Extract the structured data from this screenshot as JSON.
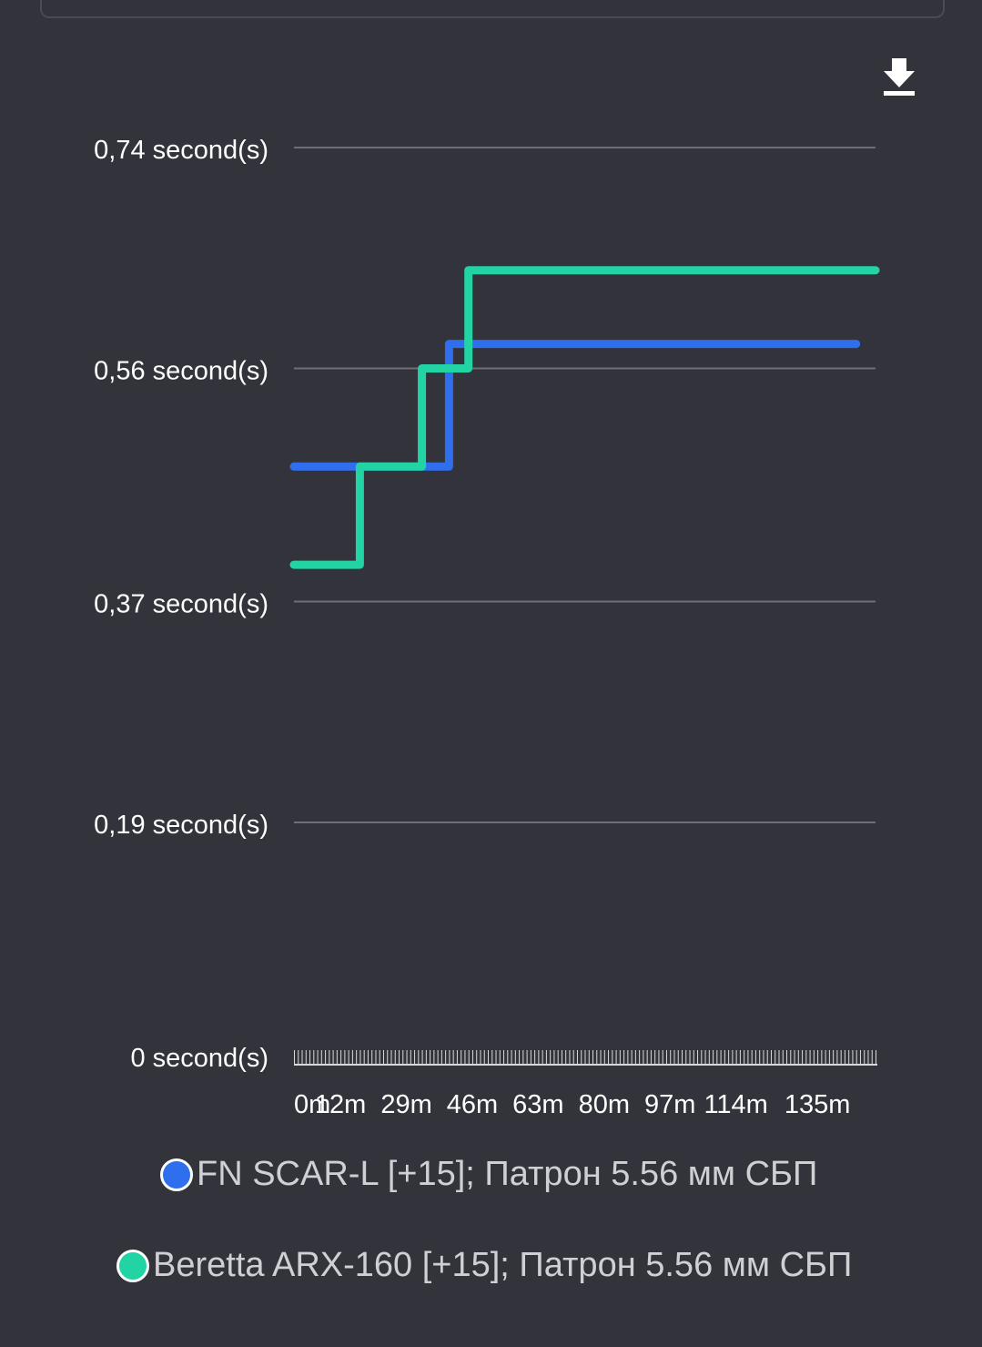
{
  "colors": {
    "background": "#32333b",
    "grid": "#6d6e76",
    "text": "#ffffff",
    "legend_text": "#d0d0d4",
    "series_1": "#2f6fee",
    "series_2": "#22d3a4"
  },
  "icons": {
    "download": "download-icon"
  },
  "chart_data": {
    "type": "line",
    "step": true,
    "y_ticks": [
      "0,74 second(s)",
      "0,56 second(s)",
      "0,37 second(s)",
      "0,19 second(s)",
      "0 second(s)"
    ],
    "y_tick_values": [
      0.74,
      0.56,
      0.37,
      0.19,
      0
    ],
    "ylim": [
      0,
      0.74
    ],
    "x_ticks": [
      "0m",
      "12m",
      "29m",
      "46m",
      "63m",
      "80m",
      "97m",
      "114m",
      "135m"
    ],
    "x_tick_values": [
      0,
      12,
      29,
      46,
      63,
      80,
      97,
      114,
      135
    ],
    "xlim": [
      0,
      150
    ],
    "grid": true,
    "legend_position": "bottom",
    "series": [
      {
        "name": "FN SCAR-L [+15]; Патрон 5.56 мм СБП",
        "color": "#2f6fee",
        "points": [
          [
            0,
            0.48
          ],
          [
            40,
            0.48
          ],
          [
            40,
            0.58
          ],
          [
            145,
            0.58
          ]
        ]
      },
      {
        "name": "Beretta ARX-160 [+15]; Патрон 5.56 мм СБП",
        "color": "#22d3a4",
        "points": [
          [
            0,
            0.4
          ],
          [
            17,
            0.4
          ],
          [
            17,
            0.48
          ],
          [
            33,
            0.48
          ],
          [
            33,
            0.56
          ],
          [
            45,
            0.56
          ],
          [
            45,
            0.64
          ],
          [
            150,
            0.64
          ]
        ]
      }
    ]
  }
}
